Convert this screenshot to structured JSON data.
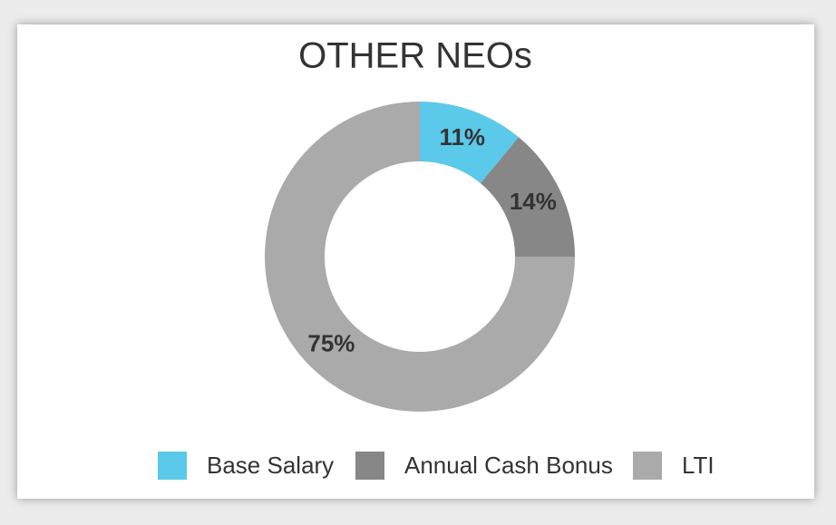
{
  "chart_data": {
    "type": "donut",
    "title": "OTHER NEOs",
    "categories": [
      "Base Salary",
      "Annual Cash Bonus",
      "LTI"
    ],
    "values": [
      11,
      14,
      75
    ],
    "value_labels": [
      "11%",
      "14%",
      "75%"
    ],
    "colors": [
      "#5bc9ea",
      "#878787",
      "#aaaaab"
    ]
  }
}
